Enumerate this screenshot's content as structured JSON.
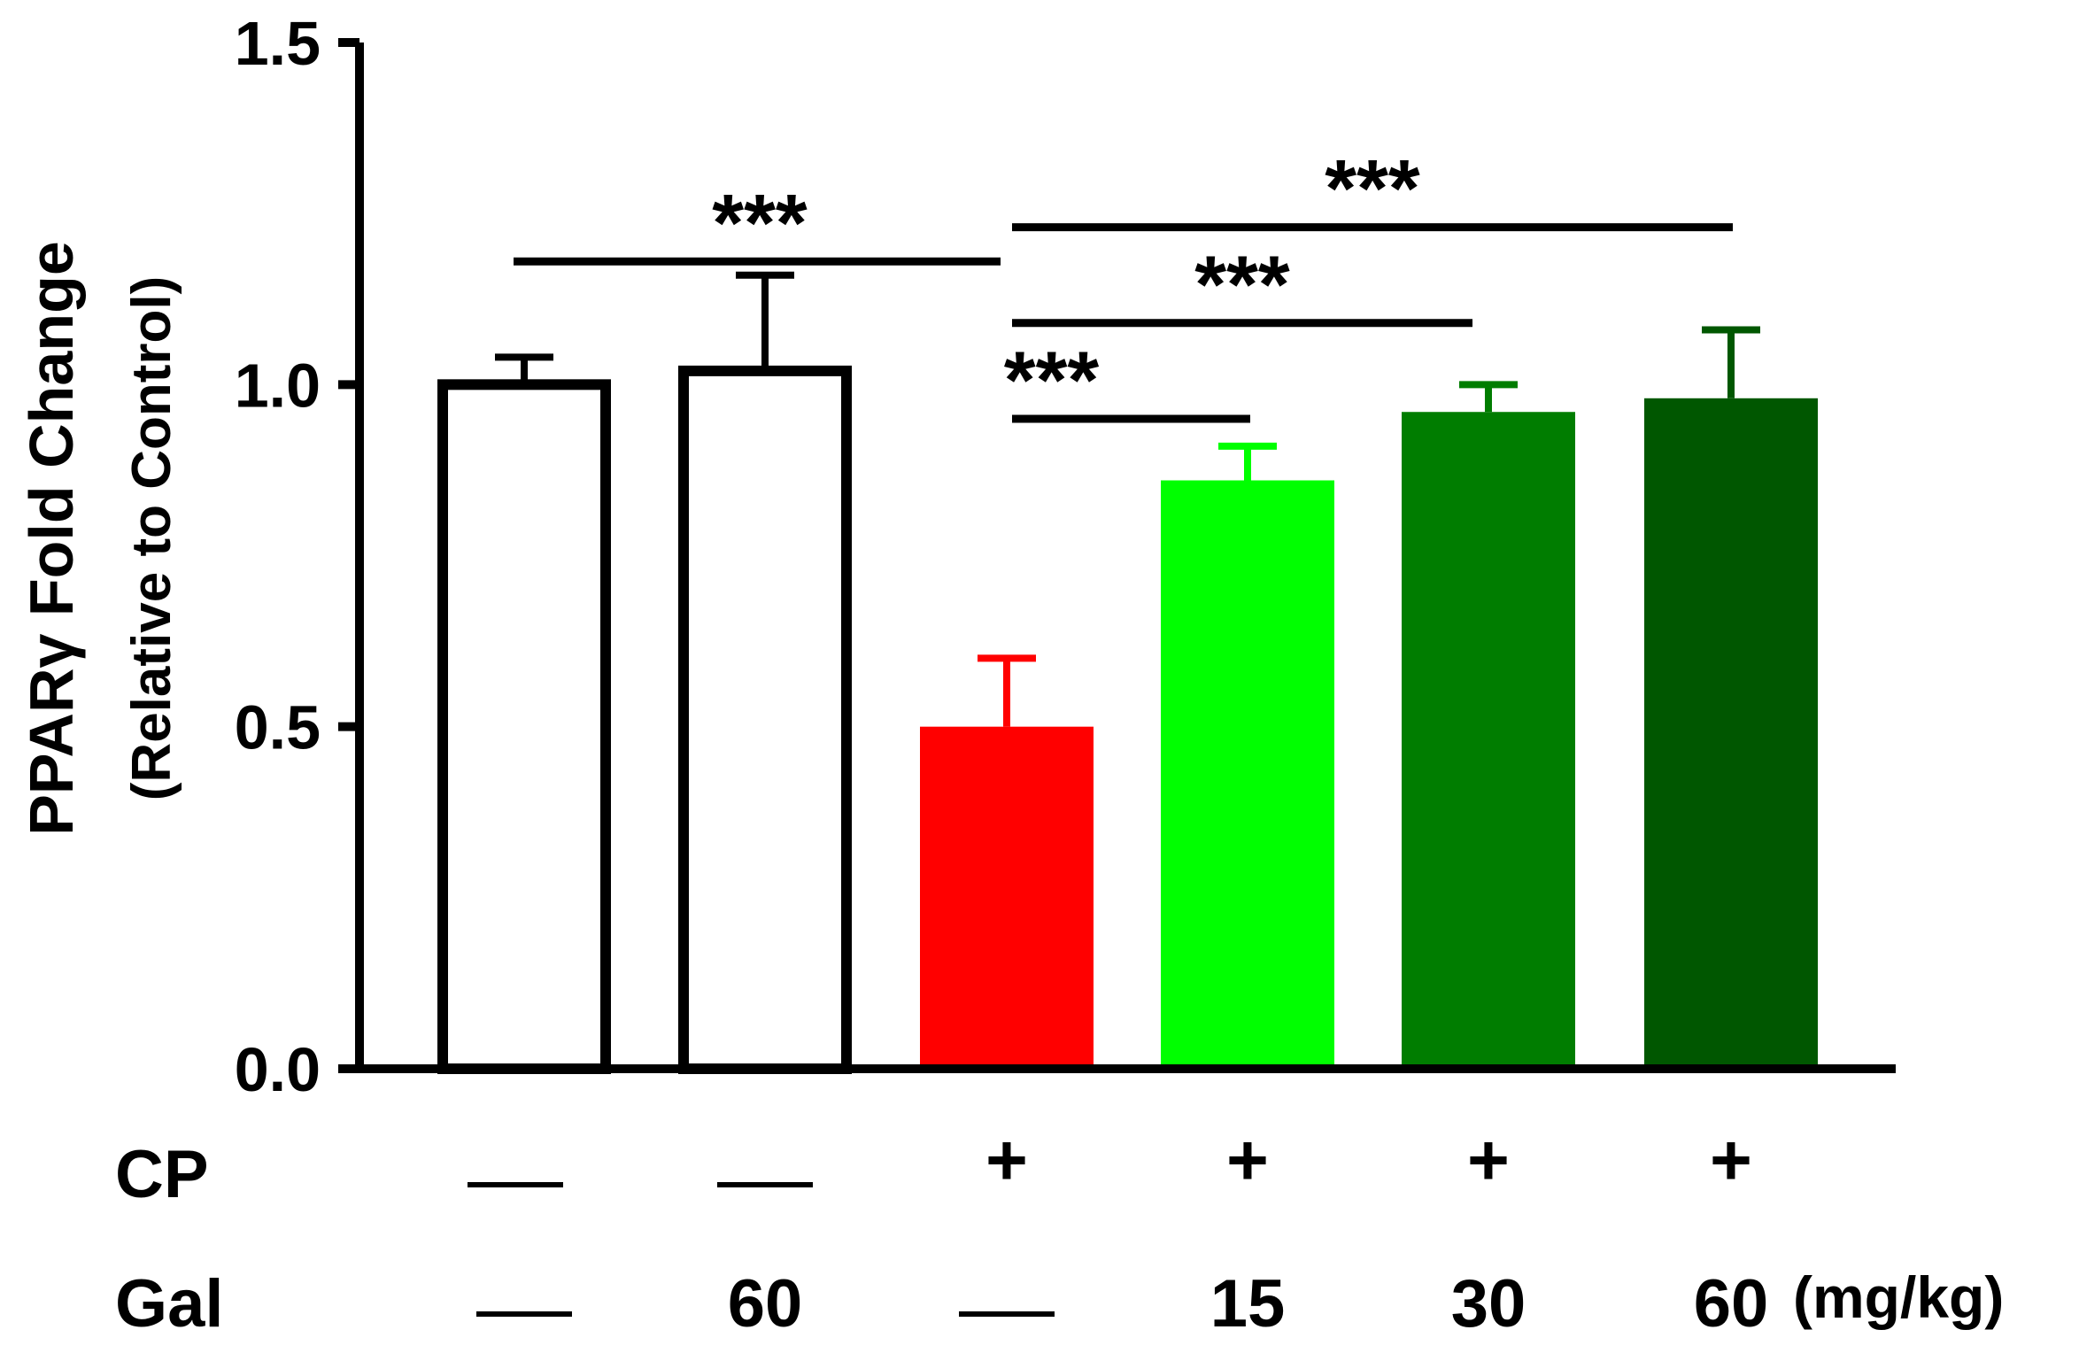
{
  "chart_data": {
    "type": "bar",
    "ylabel_line1": "PPARγ Fold Change",
    "ylabel_line2": "(Relative to Control)",
    "ylim": [
      0,
      1.5
    ],
    "yticks": [
      "0.0",
      "0.5",
      "1.0",
      "1.5"
    ],
    "bars": [
      {
        "value": 1.0,
        "error": 0.04,
        "fill": "#ffffff",
        "outline": true
      },
      {
        "value": 1.02,
        "error": 0.14,
        "fill": "#ffffff",
        "outline": true
      },
      {
        "value": 0.5,
        "error": 0.1,
        "fill": "#ff0000",
        "outline": false
      },
      {
        "value": 0.86,
        "error": 0.05,
        "fill": "#00ff00",
        "outline": false
      },
      {
        "value": 0.96,
        "error": 0.04,
        "fill": "#007d00",
        "outline": false
      },
      {
        "value": 0.98,
        "error": 0.1,
        "fill": "#005700",
        "outline": false
      }
    ],
    "rows": [
      {
        "label": "CP",
        "values": [
          "—",
          "—",
          "+",
          "+",
          "+",
          "+"
        ]
      },
      {
        "label": "Gal",
        "values": [
          "—",
          "60",
          "—",
          "15",
          "30",
          "60"
        ],
        "unit": "(mg/kg)"
      }
    ],
    "significance": [
      {
        "label": "***",
        "from_bar": 0,
        "to_bar": 1,
        "y": 1.18
      },
      {
        "label": "***",
        "from_bar": 2,
        "to_bar": 3,
        "y": 0.95
      },
      {
        "label": "***",
        "from_bar": 2,
        "to_bar": 4,
        "y": 1.09
      },
      {
        "label": "***",
        "from_bar": 2,
        "to_bar": 5,
        "y": 1.23
      }
    ]
  }
}
